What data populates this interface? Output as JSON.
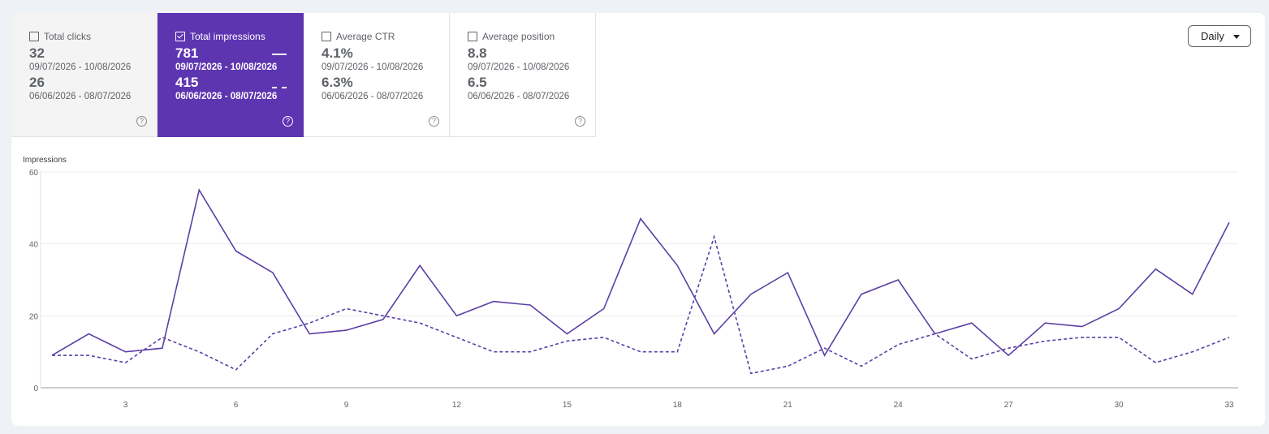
{
  "metrics": [
    {
      "label": "Total clicks",
      "value1": "32",
      "range1": "09/07/2026 - 10/08/2026",
      "value2": "26",
      "range2": "06/06/2026 - 08/07/2026",
      "checked": false
    },
    {
      "label": "Total impressions",
      "value1": "781",
      "range1": "09/07/2026 - 10/08/2026",
      "value2": "415",
      "range2": "06/06/2026 - 08/07/2026",
      "checked": true
    },
    {
      "label": "Average CTR",
      "value1": "4.1%",
      "range1": "09/07/2026 - 10/08/2026",
      "value2": "6.3%",
      "range2": "06/06/2026 - 08/07/2026",
      "checked": false
    },
    {
      "label": "Average position",
      "value1": "8.8",
      "range1": "09/07/2026 - 10/08/2026",
      "value2": "6.5",
      "range2": "06/06/2026 - 08/07/2026",
      "checked": false
    }
  ],
  "help_glyph": "?",
  "granularity": {
    "selected": "Daily"
  },
  "colors": {
    "accent": "#5e35b1",
    "line": "#5b3fa6"
  },
  "chart_data": {
    "type": "line",
    "ylabel": "Impressions",
    "ylim": [
      0,
      60
    ],
    "yticks": [
      0,
      20,
      40,
      60
    ],
    "xlim": [
      1,
      33
    ],
    "xticks": [
      3,
      6,
      9,
      12,
      15,
      18,
      21,
      24,
      27,
      30,
      33
    ],
    "grid": true,
    "x": [
      1,
      2,
      3,
      4,
      5,
      6,
      7,
      8,
      9,
      10,
      11,
      12,
      13,
      14,
      15,
      16,
      17,
      18,
      19,
      20,
      21,
      22,
      23,
      24,
      25,
      26,
      27,
      28,
      29,
      30,
      31,
      32,
      33
    ],
    "series": [
      {
        "style": "solid",
        "values": [
          9,
          15,
          10,
          11,
          55,
          38,
          32,
          15,
          16,
          19,
          34,
          20,
          24,
          23,
          15,
          22,
          47,
          34,
          15,
          26,
          32,
          9,
          26,
          30,
          15,
          18,
          9,
          18,
          17,
          22,
          33,
          26,
          46
        ]
      },
      {
        "style": "dashed",
        "values": [
          9,
          9,
          7,
          14,
          10,
          5,
          15,
          18,
          22,
          20,
          18,
          14,
          10,
          10,
          13,
          14,
          10,
          10,
          42,
          4,
          6,
          11,
          6,
          12,
          15,
          8,
          11,
          13,
          14,
          14,
          7,
          10,
          14
        ]
      }
    ]
  }
}
